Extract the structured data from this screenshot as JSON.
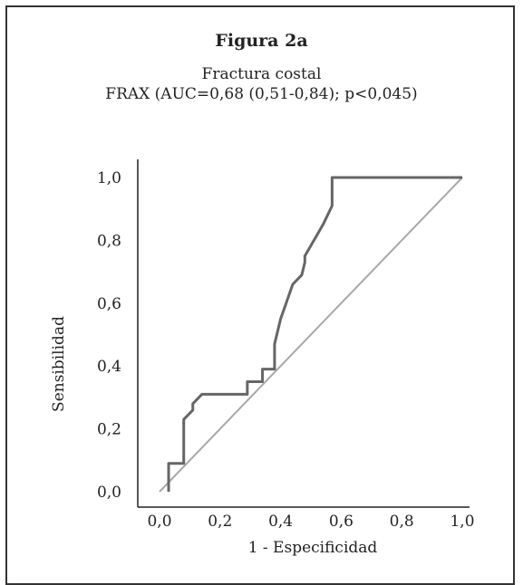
{
  "figure": {
    "label": "Figura 2a",
    "subtitle_line1": "Fractura costal",
    "subtitle_line2": "FRAX (AUC=0,68 (0,51-0,84); p<0,045)"
  },
  "chart_data": {
    "type": "line",
    "title": "Figura 2a",
    "xlabel": "1 - Especificidad",
    "ylabel": "Sensibilidad",
    "xlim": [
      0.0,
      1.0
    ],
    "ylim": [
      0.0,
      1.0
    ],
    "xticks": [
      "0,0",
      "0,2",
      "0,4",
      "0,6",
      "0,8",
      "1,0"
    ],
    "yticks": [
      "0,0",
      "0,2",
      "0,4",
      "0,6",
      "0,8",
      "1,0"
    ],
    "grid": false,
    "colors": {
      "roc": "#666666",
      "reference": "#a8a8a8",
      "axis": "#222222"
    },
    "series": [
      {
        "x": [
          0.03,
          0.03,
          0.08,
          0.08,
          0.11,
          0.11,
          0.14,
          0.14,
          0.29,
          0.29,
          0.31,
          0.34,
          0.34,
          0.38,
          0.38,
          0.4,
          0.44,
          0.47,
          0.48,
          0.48,
          0.54,
          0.57,
          0.57,
          0.57,
          1.0
        ],
        "y": [
          0.0,
          0.09,
          0.09,
          0.23,
          0.26,
          0.28,
          0.31,
          0.31,
          0.31,
          0.35,
          0.35,
          0.35,
          0.39,
          0.39,
          0.47,
          0.55,
          0.66,
          0.69,
          0.73,
          0.75,
          0.85,
          0.91,
          0.95,
          1.0,
          1.0
        ]
      },
      {
        "x": [
          0.0,
          1.0
        ],
        "y": [
          0.0,
          1.0
        ]
      }
    ]
  }
}
